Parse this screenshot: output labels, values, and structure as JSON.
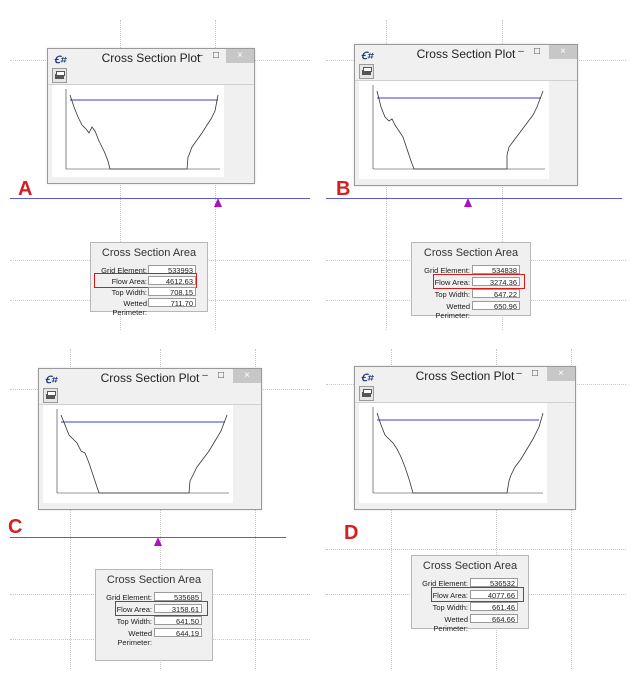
{
  "plot_window": {
    "title": "Cross Section Plot",
    "minimize_glyph": "‒",
    "maximize_glyph": "□",
    "close_glyph": "×",
    "toolbar_icon": "printer-icon"
  },
  "area_dialog": {
    "title": "Cross Section Area",
    "labels": {
      "grid_element": "Grid Element:",
      "flow_area": "Flow Area:",
      "top_width": "Top Width:",
      "wetted_perimeter": "Wetted Perimeter:"
    }
  },
  "panels": [
    {
      "letter": "A",
      "grid_element": "533993",
      "flow_area": "4612.63",
      "top_width": "708.15",
      "wetted_perimeter": "711.70"
    },
    {
      "letter": "B",
      "grid_element": "534838",
      "flow_area": "3274.36",
      "top_width": "647.22",
      "wetted_perimeter": "650.96"
    },
    {
      "letter": "C",
      "grid_element": "535685",
      "flow_area": "3158.61",
      "top_width": "641.50",
      "wetted_perimeter": "644.19"
    },
    {
      "letter": "D",
      "grid_element": "536532",
      "flow_area": "4077.66",
      "top_width": "661.46",
      "wetted_perimeter": "664.66"
    }
  ],
  "colors": {
    "water_surface": "#3b3bd6",
    "channel_line": "#6060e0",
    "marker": "#b010c0",
    "highlight": "#d61b1b",
    "panel_letter": "#d42020"
  }
}
